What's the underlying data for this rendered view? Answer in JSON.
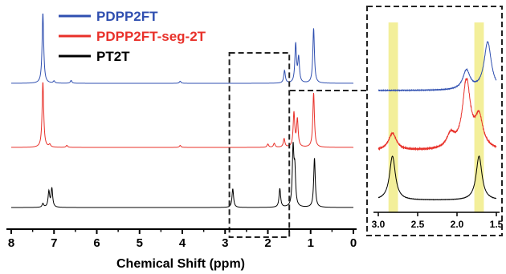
{
  "chart_data": [
    {
      "type": "line",
      "title": "",
      "xlabel": "Chemical Shift (ppm)",
      "ylabel": "",
      "x_reversed": true,
      "xlim": [
        8,
        0
      ],
      "xticks": [
        8,
        7,
        6,
        5,
        4,
        3,
        2,
        1,
        0
      ],
      "y_axis_visible": false,
      "grid": false,
      "legend_position": "top-left",
      "highlight_box": {
        "x_range": [
          2.9,
          1.5
        ],
        "style": "dashed"
      },
      "series": [
        {
          "name": "PDPP2FT",
          "color": "#2f4fb0",
          "peaks_ppm": [
            7.26,
            7.0,
            6.6,
            4.05,
            1.61,
            1.35,
            1.28,
            0.93
          ],
          "peak_heights_rel": [
            1.0,
            0.03,
            0.04,
            0.03,
            0.18,
            0.55,
            0.35,
            0.78
          ]
        },
        {
          "name": "PDPP2FT-seg-2T",
          "color": "#e8312a",
          "peaks_ppm": [
            7.26,
            7.1,
            6.7,
            4.05,
            2.0,
            1.85,
            1.62,
            1.39,
            1.31,
            0.93
          ],
          "peak_heights_rel": [
            1.0,
            0.04,
            0.03,
            0.03,
            0.05,
            0.06,
            0.13,
            0.52,
            0.42,
            0.83
          ]
        },
        {
          "name": "PT2T",
          "color": "#000000",
          "peaks_ppm": [
            7.26,
            7.12,
            7.05,
            2.82,
            1.72,
            1.41,
            1.37,
            0.91
          ],
          "peak_heights_rel": [
            0.06,
            0.25,
            0.3,
            0.3,
            0.3,
            0.92,
            0.55,
            0.79
          ]
        }
      ]
    },
    {
      "type": "line",
      "title": "",
      "xlabel": "",
      "ylabel": "",
      "x_reversed": true,
      "xlim": [
        3.0,
        1.5
      ],
      "xticks": [
        3.0,
        2.5,
        2.0,
        1.5
      ],
      "xtick_labels": [
        "3.0",
        "2.5",
        "2.0",
        "1.5"
      ],
      "y_axis_visible": false,
      "grid": false,
      "highlight_bands": [
        {
          "x_range": [
            2.87,
            2.75
          ],
          "color": "#f3ef9a"
        },
        {
          "x_range": [
            1.78,
            1.66
          ],
          "color": "#f3ef9a"
        }
      ],
      "series": [
        {
          "name": "PDPP2FT",
          "color": "#2f4fb0",
          "peaks_ppm": [
            1.88,
            1.61
          ],
          "peak_heights_rel": [
            0.4,
            1.0
          ]
        },
        {
          "name": "PDPP2FT-seg-2T",
          "color": "#e8312a",
          "peaks_ppm": [
            2.82,
            2.08,
            1.88,
            1.72
          ],
          "peak_heights_rel": [
            0.25,
            0.2,
            1.0,
            0.45
          ]
        },
        {
          "name": "PT2T",
          "color": "#000000",
          "peaks_ppm": [
            2.82,
            1.72
          ],
          "peak_heights_rel": [
            1.0,
            1.0
          ]
        }
      ]
    }
  ]
}
